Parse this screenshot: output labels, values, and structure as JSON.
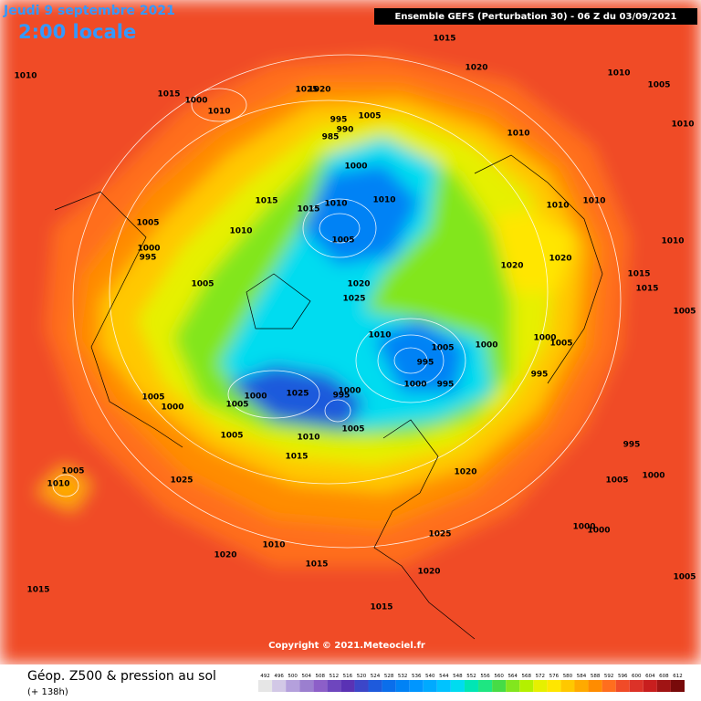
{
  "header": {
    "date": "Jeudi 9 septembre 2021",
    "time": "2:00 locale",
    "model": "Ensemble GEFS  (Perturbation 30)  -  06 Z du 03/09/2021"
  },
  "footer": {
    "copyright": "Copyright © 2021.Meteociel.fr"
  },
  "legend": {
    "title": "Géop. Z500 & pression au sol",
    "lead": "(+ 138h)",
    "levels": [
      492,
      496,
      500,
      504,
      508,
      512,
      516,
      520,
      524,
      528,
      532,
      536,
      540,
      544,
      548,
      552,
      556,
      560,
      564,
      568,
      572,
      576,
      580,
      584,
      588,
      592,
      596,
      600,
      604,
      608,
      612
    ],
    "colors": [
      "#e6e6e6",
      "#d2c8e6",
      "#b4a0dc",
      "#9b7fcf",
      "#8c5fc8",
      "#6e46be",
      "#5a32b4",
      "#3c46c8",
      "#1e5adc",
      "#0a6eeb",
      "#0082f5",
      "#0096ff",
      "#00aaff",
      "#00c3ff",
      "#00dcf0",
      "#00e6b4",
      "#1ee682",
      "#46dc46",
      "#82e61e",
      "#b4f000",
      "#e6f000",
      "#ffe600",
      "#ffc800",
      "#ffaa00",
      "#ff8c00",
      "#ff6e1e",
      "#f04b28",
      "#dc3228",
      "#c81e1e",
      "#a01414",
      "#780a0a"
    ]
  },
  "isobar_labels": [
    "1010",
    "1015",
    "1000",
    "1010",
    "1025",
    "1020",
    "1015",
    "1020",
    "1010",
    "1005",
    "1010",
    "995",
    "990",
    "985",
    "1005",
    "1010",
    "1000",
    "1015",
    "1015",
    "1010",
    "1010",
    "1005",
    "1010",
    "1010",
    "1010",
    "1005",
    "1010",
    "1000",
    "995",
    "1020",
    "1020",
    "1005",
    "1020",
    "1025",
    "1015",
    "1015",
    "1005",
    "1010",
    "1005",
    "1000",
    "995",
    "1000",
    "995",
    "1005",
    "1000",
    "995",
    "1005",
    "1000",
    "1000",
    "1025",
    "995",
    "1000",
    "1005",
    "1005",
    "1010",
    "1005",
    "1015",
    "995",
    "1020",
    "1005",
    "1000",
    "1005",
    "1010",
    "1025",
    "1025",
    "1000",
    "1000",
    "1010",
    "1020",
    "1015",
    "1020",
    "1005",
    "1015",
    "1015"
  ]
}
